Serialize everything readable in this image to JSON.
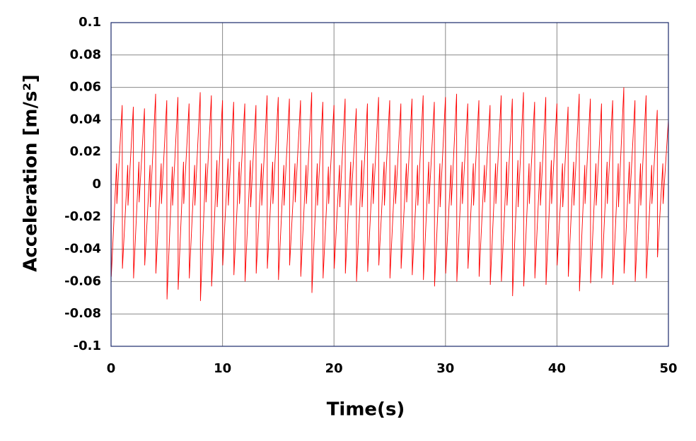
{
  "chart_data": {
    "type": "line",
    "xlabel": "Time(s)",
    "ylabel": "Acceleration  [m/s²]",
    "xlim": [
      0,
      50
    ],
    "xticks": [
      0,
      10,
      20,
      30,
      40,
      50
    ],
    "ylim": [
      -0.1,
      0.1
    ],
    "yticks": [
      -0.1,
      -0.08,
      -0.06,
      -0.04,
      -0.02,
      0,
      0.02,
      0.04,
      0.06,
      0.08,
      0.1
    ],
    "grid": true,
    "series": [
      {
        "name": "Acceleration",
        "color": "#ff0000",
        "x": [
          0,
          0.02,
          0.5,
          0.52,
          1,
          1.02,
          1.5,
          1.52,
          2,
          2.02,
          2.5,
          2.52,
          3,
          3.02,
          3.5,
          3.52,
          4,
          4.02,
          4.5,
          4.52,
          5,
          5.02,
          5.5,
          5.52,
          6,
          6.02,
          6.5,
          6.52,
          7,
          7.02,
          7.5,
          7.52,
          8,
          8.02,
          8.5,
          8.52,
          9,
          9.02,
          9.5,
          9.52,
          10,
          10.02,
          10.5,
          10.52,
          11,
          11.02,
          11.5,
          11.52,
          12,
          12.02,
          12.5,
          12.52,
          13,
          13.02,
          13.5,
          13.52,
          14,
          14.02,
          14.5,
          14.52,
          15,
          15.02,
          15.5,
          15.52,
          16,
          16.02,
          16.5,
          16.52,
          17,
          17.02,
          17.5,
          17.52,
          18,
          18.02,
          18.5,
          18.52,
          19,
          19.02,
          19.5,
          19.52,
          20,
          20.02,
          20.5,
          20.52,
          21,
          21.02,
          21.5,
          21.52,
          22,
          22.02,
          22.5,
          22.52,
          23,
          23.02,
          23.5,
          23.52,
          24,
          24.02,
          24.5,
          24.52,
          25,
          25.02,
          25.5,
          25.52,
          26,
          26.02,
          26.5,
          26.52,
          27,
          27.02,
          27.5,
          27.52,
          28,
          28.02,
          28.5,
          28.52,
          29,
          29.02,
          29.5,
          29.52,
          30,
          30.02,
          30.5,
          30.52,
          31,
          31.02,
          31.5,
          31.52,
          32,
          32.02,
          32.5,
          32.52,
          33,
          33.02,
          33.5,
          33.52,
          34,
          34.02,
          34.5,
          34.52,
          35,
          35.02,
          35.5,
          35.52,
          36,
          36.02,
          36.5,
          36.52,
          37,
          37.02,
          37.5,
          37.52,
          38,
          38.02,
          38.5,
          38.52,
          39,
          39.02,
          39.5,
          39.52,
          40,
          40.02,
          40.5,
          40.52,
          41,
          41.02,
          41.5,
          41.52,
          42,
          42.02,
          42.5,
          42.52,
          43,
          43.02,
          43.5,
          43.52,
          44,
          44.02,
          44.5,
          44.52,
          45,
          45.02,
          45.5,
          45.52,
          46,
          46.02,
          46.5,
          46.52,
          47,
          47.02,
          47.5,
          47.52,
          48,
          48.02,
          48.5,
          48.52,
          49,
          49.02,
          49.5,
          49.52,
          50
        ],
        "values": [
          0.046,
          -0.057,
          0.013,
          -0.012,
          0.049,
          -0.052,
          0.012,
          -0.013,
          0.048,
          -0.058,
          0.014,
          -0.011,
          0.047,
          -0.05,
          0.012,
          -0.014,
          0.056,
          -0.055,
          0.013,
          -0.012,
          0.052,
          -0.071,
          0.011,
          -0.013,
          0.054,
          -0.065,
          0.014,
          -0.012,
          0.05,
          -0.058,
          0.012,
          -0.013,
          0.057,
          -0.072,
          0.013,
          -0.011,
          0.055,
          -0.063,
          0.015,
          -0.014,
          0.052,
          -0.05,
          0.016,
          -0.013,
          0.051,
          -0.056,
          0.014,
          -0.012,
          0.05,
          -0.06,
          0.015,
          -0.014,
          0.049,
          -0.055,
          0.013,
          -0.013,
          0.055,
          -0.052,
          0.014,
          -0.012,
          0.054,
          -0.059,
          0.012,
          -0.013,
          0.053,
          -0.05,
          0.013,
          -0.011,
          0.052,
          -0.057,
          0.012,
          -0.012,
          0.057,
          -0.067,
          0.013,
          -0.013,
          0.051,
          -0.058,
          0.011,
          -0.012,
          0.049,
          -0.052,
          0.012,
          -0.014,
          0.053,
          -0.055,
          0.014,
          -0.013,
          0.047,
          -0.06,
          0.015,
          -0.014,
          0.05,
          -0.054,
          0.013,
          -0.012,
          0.054,
          -0.05,
          0.014,
          -0.013,
          0.052,
          -0.058,
          0.012,
          -0.012,
          0.05,
          -0.052,
          0.013,
          -0.011,
          0.053,
          -0.056,
          0.012,
          -0.013,
          0.055,
          -0.059,
          0.014,
          -0.012,
          0.051,
          -0.063,
          0.013,
          -0.014,
          0.054,
          -0.055,
          0.012,
          -0.013,
          0.056,
          -0.06,
          0.014,
          -0.012,
          0.05,
          -0.052,
          0.013,
          -0.013,
          0.052,
          -0.057,
          0.012,
          -0.011,
          0.049,
          -0.062,
          0.013,
          -0.012,
          0.055,
          -0.06,
          0.014,
          -0.013,
          0.053,
          -0.069,
          0.015,
          -0.014,
          0.057,
          -0.063,
          0.013,
          -0.012,
          0.051,
          -0.058,
          0.014,
          -0.013,
          0.054,
          -0.062,
          0.015,
          -0.012,
          0.05,
          -0.05,
          0.013,
          -0.014,
          0.048,
          -0.057,
          0.014,
          -0.013,
          0.056,
          -0.066,
          0.012,
          -0.012,
          0.053,
          -0.061,
          0.013,
          -0.013,
          0.05,
          -0.058,
          0.014,
          -0.012,
          0.052,
          -0.062,
          0.013,
          -0.014,
          0.06,
          -0.055,
          0.014,
          -0.012,
          0.052,
          -0.06,
          0.013,
          -0.013,
          0.055,
          -0.058,
          0.012,
          -0.012,
          0.046,
          -0.045,
          0.013,
          -0.012,
          0.04
        ]
      }
    ]
  }
}
